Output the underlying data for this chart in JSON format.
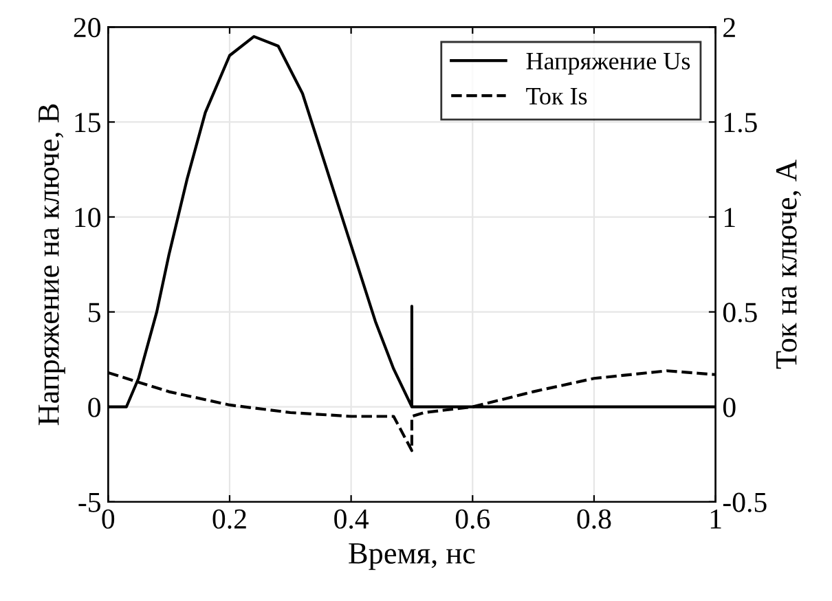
{
  "chart_data": {
    "type": "line",
    "xlabel": "Время, нс",
    "ylabel": "Напряжение на ключе, В",
    "y2label": "Ток на ключе, А",
    "xlim": [
      0,
      1
    ],
    "xticks": [
      0,
      0.2,
      0.4,
      0.6,
      0.8,
      1
    ],
    "ylim": [
      -5,
      20
    ],
    "yticks": [
      -5,
      0,
      5,
      10,
      15,
      20
    ],
    "y2lim": [
      -0.5,
      2
    ],
    "y2ticks": [
      -0.5,
      0,
      0.5,
      1,
      1.5,
      2
    ],
    "grid": true,
    "legend": "top right",
    "series": [
      {
        "name": "Напряжение Us",
        "color": "#000000",
        "line_style": "solid",
        "x": [
          0,
          0.03,
          0.05,
          0.08,
          0.1,
          0.13,
          0.16,
          0.2,
          0.24,
          0.28,
          0.32,
          0.36,
          0.4,
          0.44,
          0.47,
          0.5,
          0.5,
          0.5,
          1
        ],
        "values": [
          0,
          0,
          1.5,
          5,
          8,
          12,
          15.5,
          18.5,
          19.5,
          19,
          16.5,
          12.5,
          8.5,
          4.5,
          2,
          0,
          5.3,
          0,
          0
        ]
      },
      {
        "name": "Ток Is",
        "color": "#000000",
        "line_style": "dashed",
        "axis": "y2",
        "x": [
          0,
          0.03,
          0.1,
          0.2,
          0.3,
          0.4,
          0.47,
          0.5,
          0.5,
          0.52,
          0.6,
          0.7,
          0.8,
          0.92,
          1
        ],
        "values": [
          0.18,
          0.15,
          0.08,
          0.01,
          -0.03,
          -0.05,
          -0.05,
          -0.23,
          -0.05,
          -0.03,
          0,
          0.08,
          0.15,
          0.19,
          0.17
        ]
      }
    ]
  }
}
